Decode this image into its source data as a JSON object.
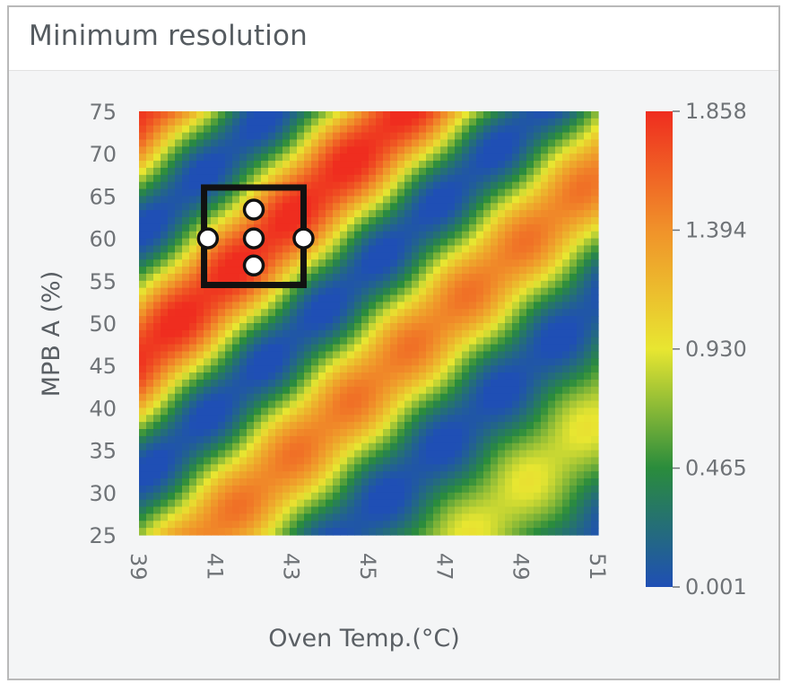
{
  "panel": {
    "title": "Minimum resolution"
  },
  "chart_data": {
    "type": "heatmap",
    "title": "Minimum resolution",
    "xlabel": "Oven Temp.(°C)",
    "ylabel": "MPB A (%)",
    "xlim": [
      39,
      51
    ],
    "ylim": [
      25,
      75
    ],
    "x_ticks": [
      "39",
      "41",
      "43",
      "45",
      "47",
      "49",
      "51"
    ],
    "y_ticks": [
      "25",
      "30",
      "35",
      "40",
      "45",
      "50",
      "55",
      "60",
      "65",
      "70",
      "75"
    ],
    "colorbar": {
      "min": 0.001,
      "max": 1.858,
      "ticks": [
        "1.858",
        "1.394",
        "0.930",
        "0.465",
        "0.001"
      ],
      "colors": [
        "#1f4fb5",
        "#2a8c3c",
        "#e8e631",
        "#f0922a",
        "#ef2d1f"
      ]
    },
    "design_space": {
      "x_range": [
        40.7,
        43.3
      ],
      "y_range": [
        54.5,
        66
      ]
    },
    "design_points": [
      {
        "x": 40.8,
        "y": 60
      },
      {
        "x": 42.0,
        "y": 60
      },
      {
        "x": 43.3,
        "y": 60
      },
      {
        "x": 42.0,
        "y": 63.4
      },
      {
        "x": 42.0,
        "y": 56.8
      }
    ]
  }
}
